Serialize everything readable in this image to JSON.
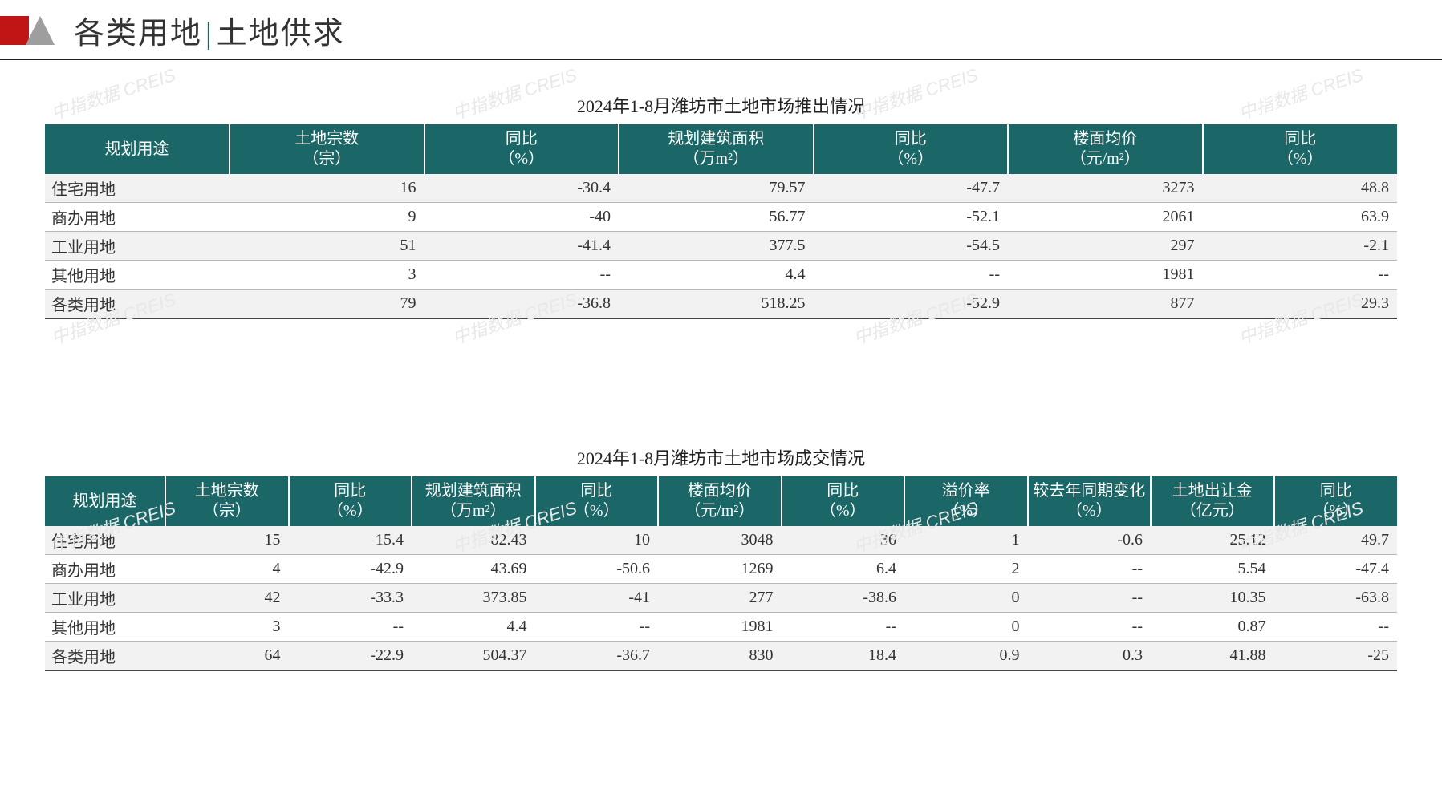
{
  "header": {
    "title_left": "各类用地",
    "title_right": "土地供求"
  },
  "watermark_text": "中指数据 CREIS",
  "table1": {
    "title": "2024年1-8月潍坊市土地市场推出情况",
    "columns": [
      {
        "l1": "规划用途",
        "l2": ""
      },
      {
        "l1": "土地宗数",
        "l2": "（宗）"
      },
      {
        "l1": "同比",
        "l2": "（%）"
      },
      {
        "l1": "规划建筑面积",
        "l2": "（万m²）"
      },
      {
        "l1": "同比",
        "l2": "（%）"
      },
      {
        "l1": "楼面均价",
        "l2": "（元/m²）"
      },
      {
        "l1": "同比",
        "l2": "（%）"
      }
    ],
    "rows": [
      {
        "label": "住宅用地",
        "c": [
          "16",
          "-30.4",
          "79.57",
          "-47.7",
          "3273",
          "48.8"
        ]
      },
      {
        "label": "商办用地",
        "c": [
          "9",
          "-40",
          "56.77",
          "-52.1",
          "2061",
          "63.9"
        ]
      },
      {
        "label": "工业用地",
        "c": [
          "51",
          "-41.4",
          "377.5",
          "-54.5",
          "297",
          "-2.1"
        ]
      },
      {
        "label": "其他用地",
        "c": [
          "3",
          "--",
          "4.4",
          "--",
          "1981",
          "--"
        ]
      },
      {
        "label": "各类用地",
        "c": [
          "79",
          "-36.8",
          "518.25",
          "-52.9",
          "877",
          "29.3"
        ]
      }
    ]
  },
  "table2": {
    "title": "2024年1-8月潍坊市土地市场成交情况",
    "columns": [
      {
        "l1": "规划用途",
        "l2": ""
      },
      {
        "l1": "土地宗数",
        "l2": "（宗）"
      },
      {
        "l1": "同比",
        "l2": "（%）"
      },
      {
        "l1": "规划建筑面积",
        "l2": "（万m²）"
      },
      {
        "l1": "同比",
        "l2": "（%）"
      },
      {
        "l1": "楼面均价",
        "l2": "（元/m²）"
      },
      {
        "l1": "同比",
        "l2": "（%）"
      },
      {
        "l1": "溢价率",
        "l2": "（%）"
      },
      {
        "l1": "较去年同期变化",
        "l2": "（%）"
      },
      {
        "l1": "土地出让金",
        "l2": "（亿元）"
      },
      {
        "l1": "同比",
        "l2": "（%）"
      }
    ],
    "rows": [
      {
        "label": "住宅用地",
        "c": [
          "15",
          "15.4",
          "82.43",
          "10",
          "3048",
          "36",
          "1",
          "-0.6",
          "25.12",
          "49.7"
        ]
      },
      {
        "label": "商办用地",
        "c": [
          "4",
          "-42.9",
          "43.69",
          "-50.6",
          "1269",
          "6.4",
          "2",
          "--",
          "5.54",
          "-47.4"
        ]
      },
      {
        "label": "工业用地",
        "c": [
          "42",
          "-33.3",
          "373.85",
          "-41",
          "277",
          "-38.6",
          "0",
          "--",
          "10.35",
          "-63.8"
        ]
      },
      {
        "label": "其他用地",
        "c": [
          "3",
          "--",
          "4.4",
          "--",
          "1981",
          "--",
          "0",
          "--",
          "0.87",
          "--"
        ]
      },
      {
        "label": "各类用地",
        "c": [
          "64",
          "-22.9",
          "504.37",
          "-36.7",
          "830",
          "18.4",
          "0.9",
          "0.3",
          "41.88",
          "-25"
        ]
      }
    ]
  },
  "style": {
    "header_bg": "#1b6666",
    "header_fg": "#ffffff",
    "stripe_bg": "#f2f2f2",
    "border_color": "#b7b7b7",
    "logo_red": "#c01515",
    "logo_gray": "#9e9e9e"
  }
}
